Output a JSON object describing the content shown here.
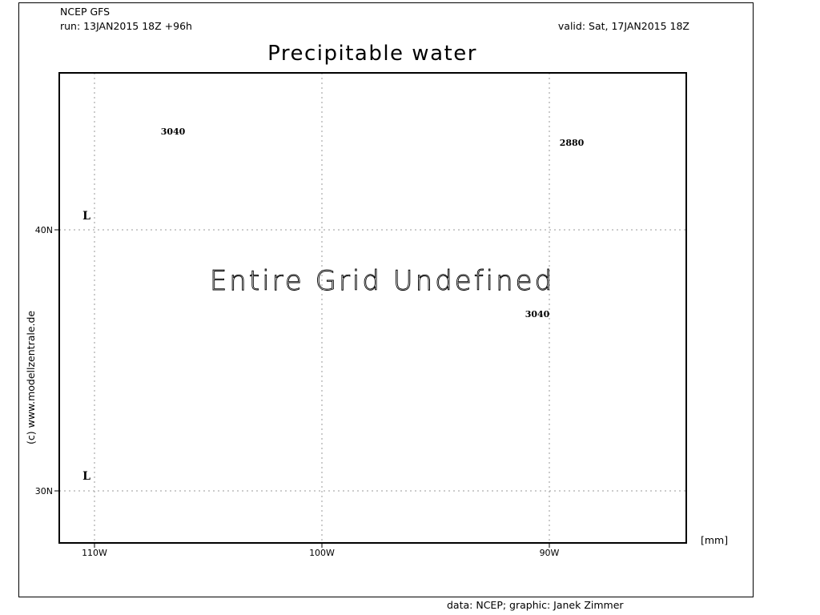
{
  "header": {
    "model": "NCEP GFS",
    "run": "run: 13JAN2015 18Z +96h",
    "valid": "valid: Sat, 17JAN2015 18Z"
  },
  "title": "Precipitable water",
  "map": {
    "undefined_message": "Entire Grid Undefined",
    "units_label": "[mm]",
    "longitude_ticks": [
      "110W",
      "100W",
      "90W"
    ],
    "latitude_ticks": [
      "40N",
      "30N"
    ],
    "grid_lines": true,
    "pressure_systems": [
      {
        "symbol": "L"
      },
      {
        "symbol": "L"
      }
    ],
    "contour_labels": [
      "3040",
      "2880",
      "3040"
    ]
  },
  "side_credit": "(c)  www.modellzentrale.de",
  "footer": "data: NCEP; graphic: Janek Zimmer",
  "colors": {
    "background": "#ffffff",
    "foreground": "#000000",
    "grid": "#9a9a9a"
  }
}
